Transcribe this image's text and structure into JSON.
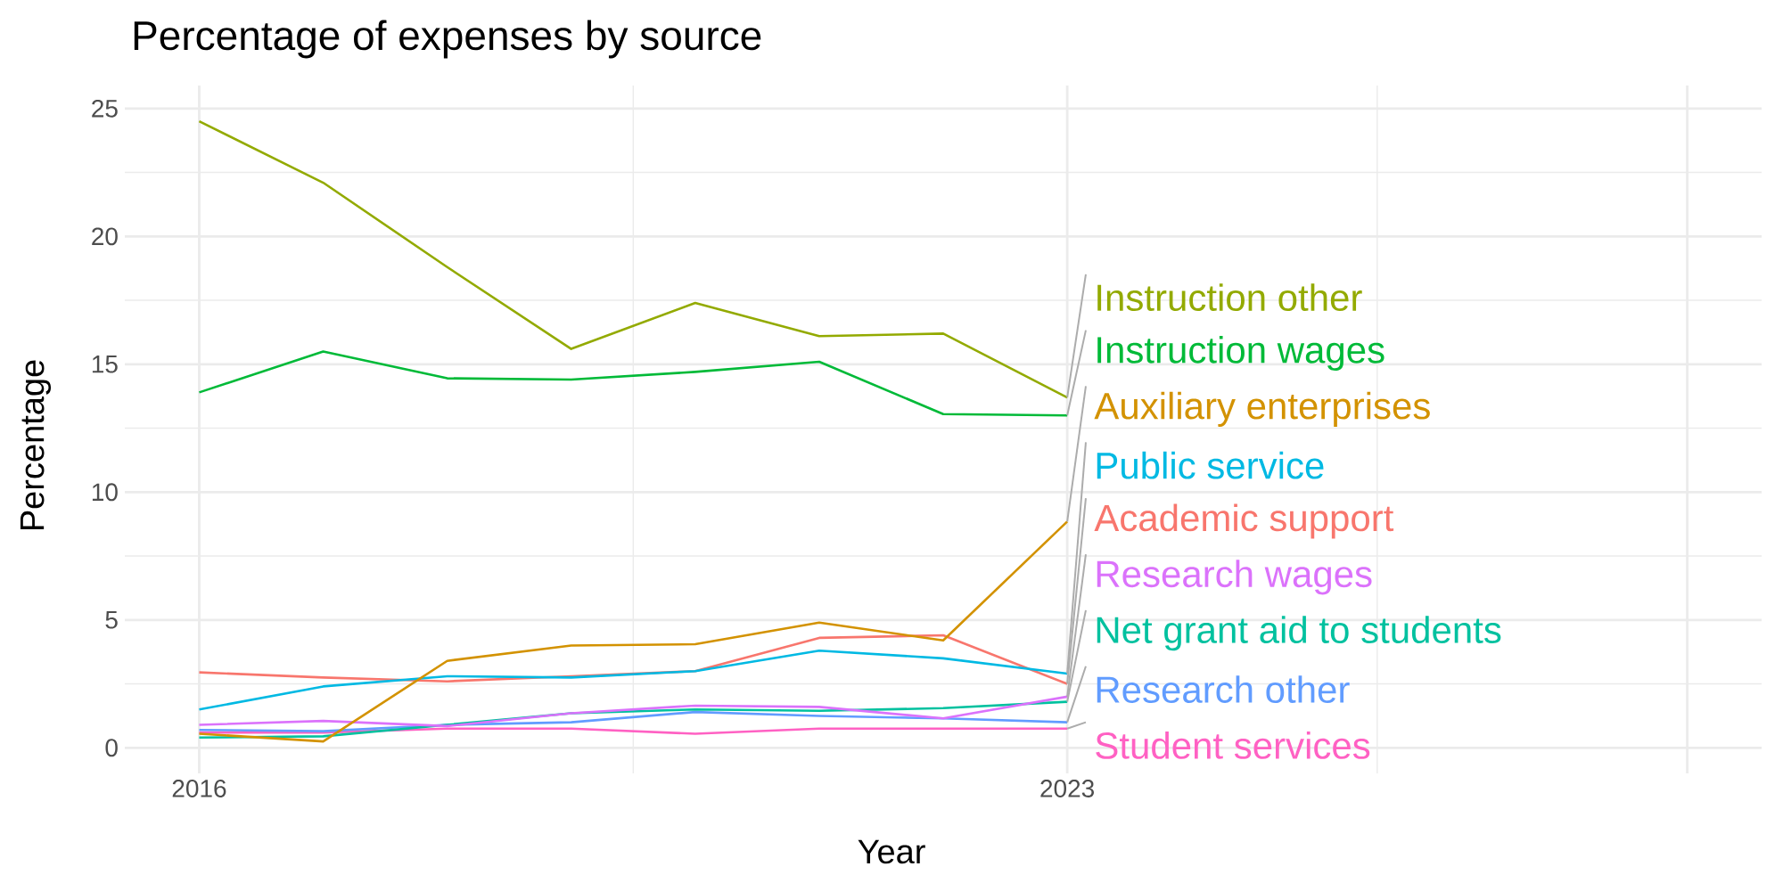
{
  "chart_data": {
    "type": "line",
    "title": "Percentage of expenses by source",
    "xlabel": "Year",
    "ylabel": "Percentage",
    "x": [
      2016,
      2017,
      2018,
      2019,
      2020,
      2021,
      2022,
      2023
    ],
    "xlim": [
      2015.4,
      2028.6
    ],
    "ylim": [
      -1.0,
      25.9
    ],
    "xticks": [
      2016,
      2023,
      {
        "value": 2028,
        "label": null
      }
    ],
    "yticks": [
      0,
      5,
      10,
      15,
      20,
      25
    ],
    "grid": true,
    "series": [
      {
        "name": "Instruction other",
        "color": "#93aa00",
        "values": [
          24.5,
          22.1,
          18.8,
          15.6,
          17.4,
          16.1,
          16.2,
          13.7
        ]
      },
      {
        "name": "Instruction wages",
        "color": "#00ba38",
        "values": [
          13.9,
          15.5,
          14.45,
          14.4,
          14.7,
          15.1,
          13.05,
          13.0
        ]
      },
      {
        "name": "Auxiliary enterprises",
        "color": "#d39200",
        "values": [
          0.55,
          0.25,
          3.4,
          4.0,
          4.05,
          4.9,
          4.2,
          8.85
        ]
      },
      {
        "name": "Public service",
        "color": "#00b9e3",
        "values": [
          1.5,
          2.4,
          2.8,
          2.75,
          3.0,
          3.8,
          3.5,
          2.9
        ]
      },
      {
        "name": "Academic support",
        "color": "#f8766d",
        "values": [
          2.95,
          2.75,
          2.6,
          2.8,
          3.0,
          4.3,
          4.4,
          2.5
        ]
      },
      {
        "name": "Research wages",
        "color": "#db72fb",
        "values": [
          0.9,
          1.05,
          0.85,
          1.35,
          1.65,
          1.6,
          1.15,
          2.0
        ]
      },
      {
        "name": "Net grant aid to students",
        "color": "#00c19f",
        "values": [
          0.4,
          0.45,
          0.9,
          1.35,
          1.5,
          1.45,
          1.55,
          1.8
        ]
      },
      {
        "name": "Research other",
        "color": "#619cff",
        "values": [
          0.7,
          0.65,
          0.9,
          1.0,
          1.4,
          1.25,
          1.15,
          1.0
        ]
      },
      {
        "name": "Student services",
        "color": "#ff61c3",
        "values": [
          0.6,
          0.6,
          0.75,
          0.75,
          0.55,
          0.75,
          0.75,
          0.75
        ]
      }
    ]
  }
}
